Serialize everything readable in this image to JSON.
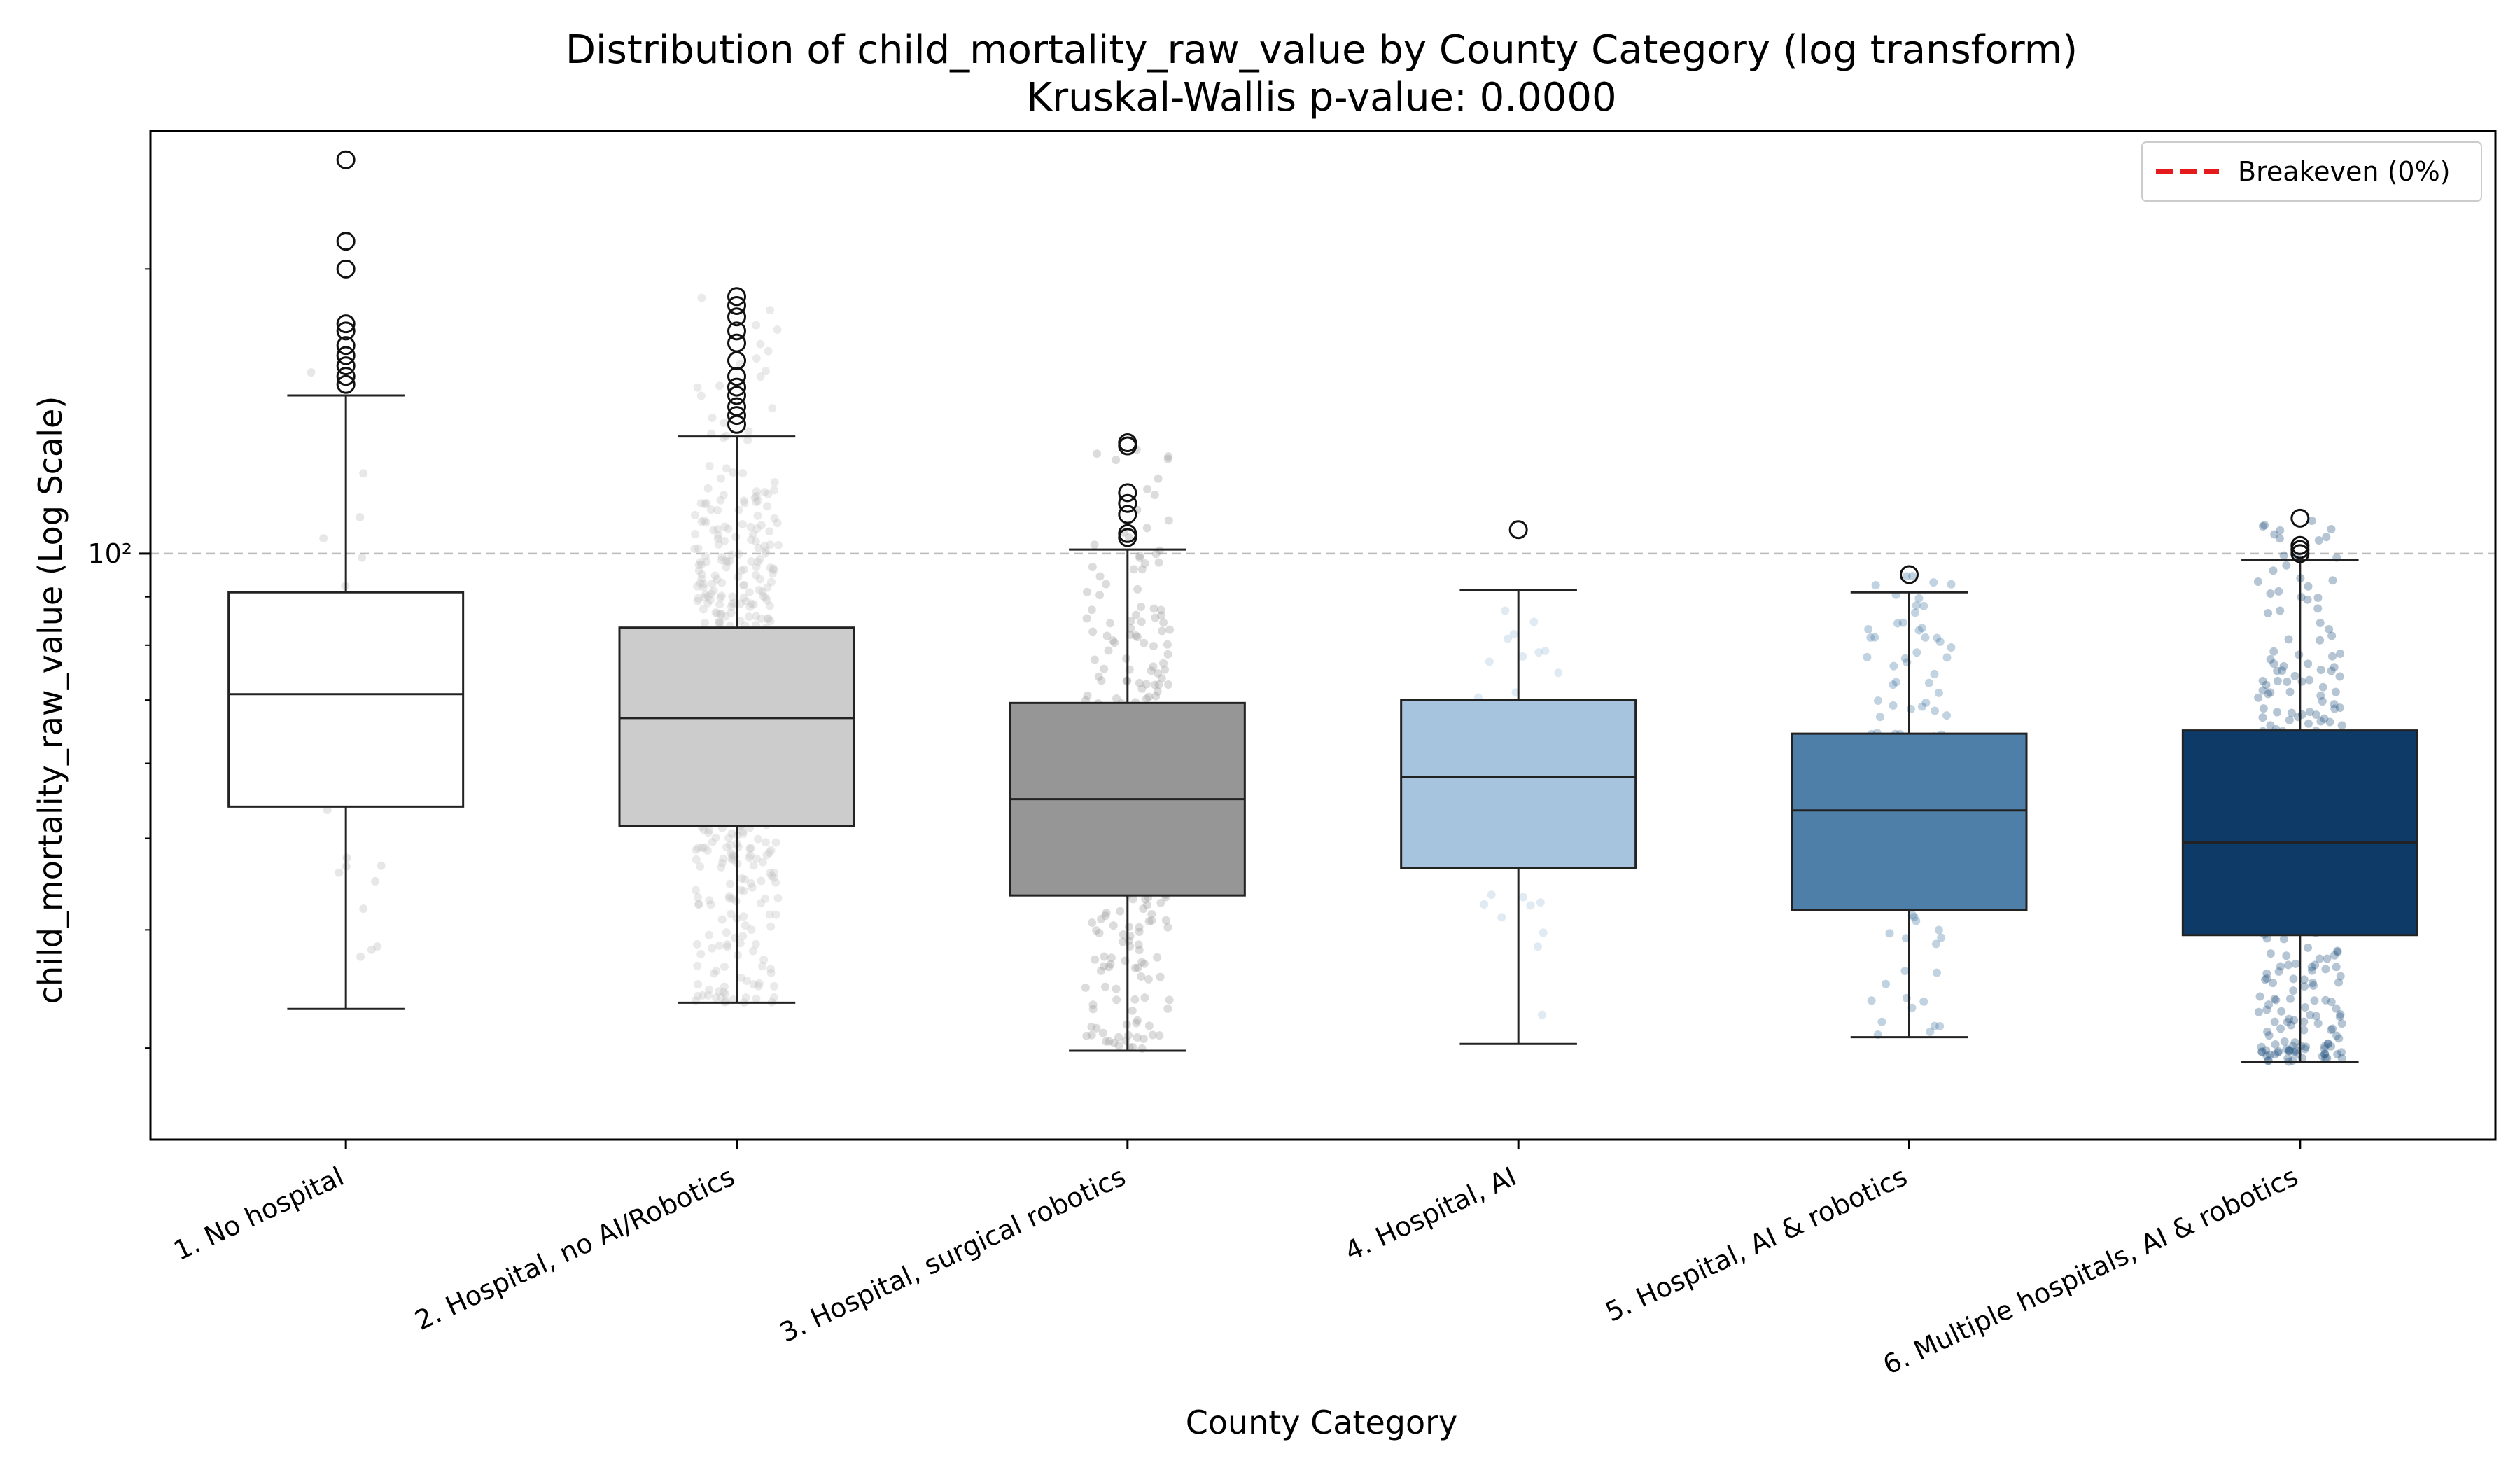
{
  "chart_data": {
    "type": "box",
    "title": "Distribution of child_mortality_raw_value by County Category (log transform)",
    "subtitle": "Kruskal-Wallis p-value: 0.0000",
    "xlabel": "County Category",
    "ylabel": "child_mortality_raw_value (Log Scale)",
    "y_scale": "log",
    "y_range": [
      24,
      280
    ],
    "y_tick_labels": [
      {
        "value": 100,
        "label": "10²"
      }
    ],
    "grid": "horizontal dashed line at 10²",
    "reference_line": {
      "y": 100,
      "style": "dashed",
      "color": "#bbbbbb"
    },
    "legend": {
      "position": "top-right",
      "entries": [
        {
          "label": "Breakeven (0%)",
          "color": "#e41a1c",
          "style": "dashed"
        }
      ]
    },
    "categories": [
      "1. No hospital",
      "2. Hospital, no AI/Robotics",
      "3. Hospital, surgical robotics",
      "4. Hospital, AI",
      "5. Hospital, AI & robotics",
      "6. Multiple hospitals, AI & robotics"
    ],
    "series": [
      {
        "color": "#ffffff",
        "point_color": "#bbbbbb",
        "whisker_low": 33,
        "q1": 54,
        "median": 71,
        "q3": 91,
        "whisker_high": 147,
        "outliers": [
          151,
          154,
          158,
          162,
          166,
          172,
          175,
          200,
          214,
          261
        ],
        "n_points": 40
      },
      {
        "color": "#cccccc",
        "point_color": "#c4c4c4",
        "whisker_low": 33.5,
        "q1": 51.5,
        "median": 67,
        "q3": 83.5,
        "whisker_high": 133,
        "outliers": [
          137,
          140,
          143,
          147,
          150,
          154,
          160,
          167,
          172,
          178,
          183,
          187
        ],
        "n_points": 600
      },
      {
        "color": "#969696",
        "point_color": "#9a9a9a",
        "whisker_low": 29.8,
        "q1": 43.5,
        "median": 55,
        "q3": 69.5,
        "whisker_high": 101,
        "outliers": [
          104,
          105,
          110,
          113,
          116,
          130,
          131
        ],
        "n_points": 320
      },
      {
        "color": "#a6c4de",
        "point_color": "#a6c4de",
        "whisker_low": 30.3,
        "q1": 46.5,
        "median": 58,
        "q3": 70,
        "whisker_high": 91.5,
        "outliers": [
          106
        ],
        "n_points": 35
      },
      {
        "color": "#4e7fa8",
        "point_color": "#4e7fa8",
        "whisker_low": 30.8,
        "q1": 42,
        "median": 53.5,
        "q3": 64.5,
        "whisker_high": 91,
        "outliers": [
          95
        ],
        "n_points": 130
      },
      {
        "color": "#0e3a68",
        "point_color": "#2c5a85",
        "whisker_low": 29,
        "q1": 39.5,
        "median": 49.5,
        "q3": 65,
        "whisker_high": 98.5,
        "outliers": [
          100,
          101,
          102,
          109
        ],
        "n_points": 380
      }
    ]
  }
}
